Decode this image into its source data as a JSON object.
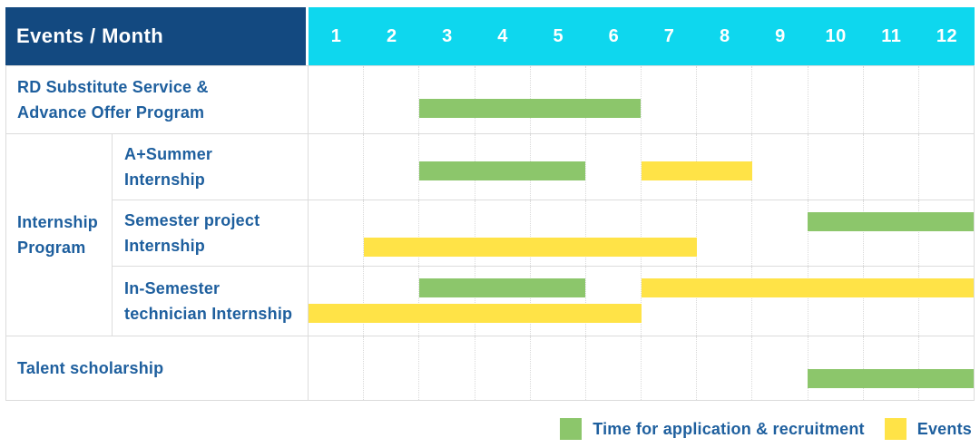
{
  "header": {
    "title": "Events / Month",
    "months": [
      "1",
      "2",
      "3",
      "4",
      "5",
      "6",
      "7",
      "8",
      "9",
      "10",
      "11",
      "12"
    ]
  },
  "colors": {
    "header_bg": "#134980",
    "month_header_bg": "#0ED7EE",
    "green": "#8CC66B",
    "yellow": "#FFE347",
    "label_text": "#1E5F9E",
    "header_text": "#ffffff",
    "grid_line": "#dcdcdc"
  },
  "legend": {
    "items": [
      {
        "key": "green",
        "label": "Time for application & recruitment"
      },
      {
        "key": "yellow",
        "label": "Events"
      }
    ]
  },
  "chart_data": {
    "type": "bar",
    "subtype": "gantt-schedule",
    "title": "Events / Month",
    "x_axis": {
      "label": "Month",
      "ticks": [
        1,
        2,
        3,
        4,
        5,
        6,
        7,
        8,
        9,
        10,
        11,
        12
      ],
      "range": [
        1,
        12
      ]
    },
    "grid": true,
    "legend_position": "bottom-right",
    "series": [
      {
        "name": "Time for application & recruitment",
        "color_key": "green",
        "color": "#8CC66B"
      },
      {
        "name": "Events",
        "color_key": "yellow",
        "color": "#FFE347"
      }
    ],
    "rows": [
      {
        "id": "rd-substitute-service",
        "group": null,
        "label_lines": [
          "RD Substitute Service &",
          "Advance Offer Program"
        ],
        "spans": [
          {
            "series": "Time for application & recruitment",
            "color_key": "green",
            "start_month": 3,
            "end_month": 6,
            "lane": "single"
          }
        ]
      },
      {
        "id": "a-plus-summer-internship",
        "group": "Internship Program",
        "label_lines": [
          "A+Summer",
          "Internship"
        ],
        "spans": [
          {
            "series": "Time for application & recruitment",
            "color_key": "green",
            "start_month": 3,
            "end_month": 5,
            "lane": "mid"
          },
          {
            "series": "Events",
            "color_key": "yellow",
            "start_month": 7,
            "end_month": 8,
            "lane": "mid"
          }
        ]
      },
      {
        "id": "semester-project-internship",
        "group": "Internship Program",
        "label_lines": [
          "Semester project",
          "Internship"
        ],
        "spans": [
          {
            "series": "Time for application & recruitment",
            "color_key": "green",
            "start_month": 10,
            "end_month": 12,
            "lane": "upper"
          },
          {
            "series": "Events",
            "color_key": "yellow",
            "start_month": 2,
            "end_month": 7,
            "lane": "lower"
          }
        ]
      },
      {
        "id": "in-semester-technician-internship",
        "group": "Internship Program",
        "label_lines": [
          "In-Semester",
          "technician Internship"
        ],
        "spans": [
          {
            "series": "Time for application & recruitment",
            "color_key": "green",
            "start_month": 3,
            "end_month": 5,
            "lane": "upper"
          },
          {
            "series": "Events",
            "color_key": "yellow",
            "start_month": 7,
            "end_month": 12,
            "lane": "upper"
          },
          {
            "series": "Events",
            "color_key": "yellow",
            "start_month": 1,
            "end_month": 6,
            "lane": "lower"
          }
        ]
      },
      {
        "id": "talent-scholarship",
        "group": null,
        "label_lines": [
          "Talent scholarship"
        ],
        "spans": [
          {
            "series": "Time for application & recruitment",
            "color_key": "green",
            "start_month": 10,
            "end_month": 12,
            "lane": "single"
          }
        ]
      }
    ],
    "group_label_lines": [
      "Internship",
      "Program"
    ]
  }
}
